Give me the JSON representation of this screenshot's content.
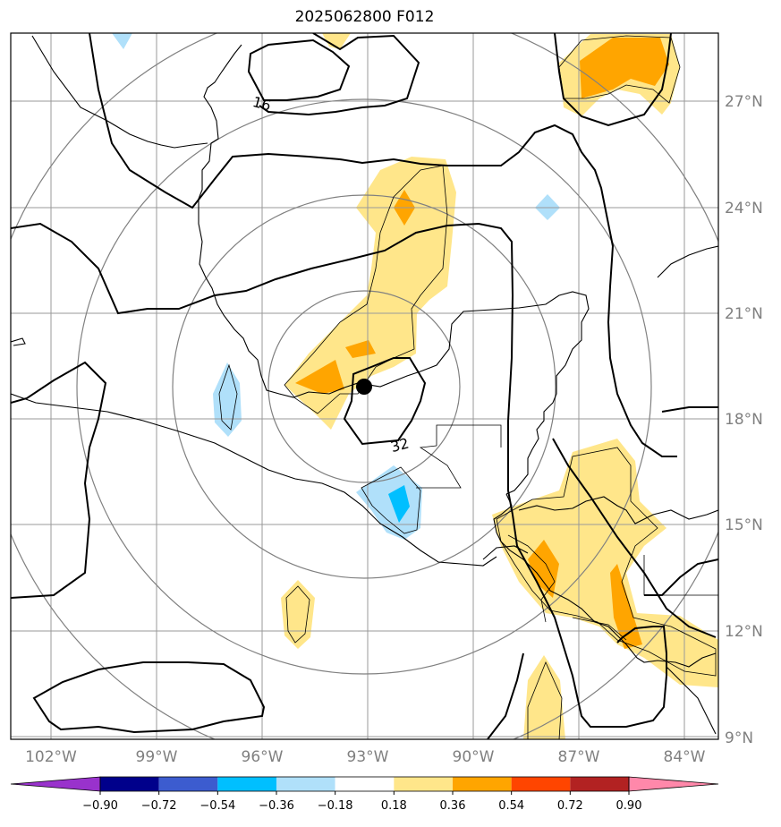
{
  "title": "2025062800 F012",
  "lat_labels": [
    "27°N",
    "24°N",
    "21°N",
    "18°N",
    "15°N",
    "12°N",
    "9°N"
  ],
  "lon_labels": [
    "102°W",
    "99°W",
    "96°W",
    "93°W",
    "90°W",
    "87°W",
    "84°W"
  ],
  "contour_labels": [
    "16",
    "32"
  ],
  "colorbar": {
    "labels": [
      "−0.90",
      "−0.72",
      "−0.54",
      "−0.36",
      "−0.18",
      "0.18",
      "0.36",
      "0.54",
      "0.72",
      "0.90"
    ],
    "colors": [
      "#9932cc",
      "#00008b",
      "#3c5ccf",
      "#00bfff",
      "#b0e0fa",
      "#ffffff",
      "#ffe68a",
      "#ffa500",
      "#ff4500",
      "#b22222",
      "#ff88aa"
    ]
  },
  "colors": {
    "positive_light": "#ffe68a",
    "positive_mid": "#ffa500",
    "negative_light": "#b0e0fa",
    "negative_mid": "#00bfff",
    "grid": "#999999",
    "range_rings": "#808080",
    "contours": "#000000",
    "storm_center": "#000000"
  }
}
